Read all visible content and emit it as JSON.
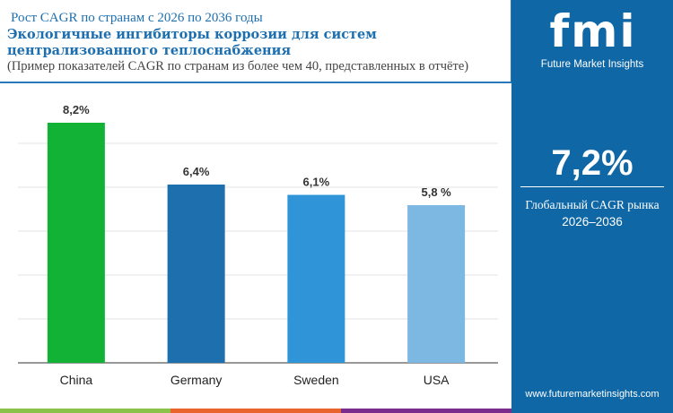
{
  "header": {
    "subtitle": "Рост CAGR по странам с 2026 по 2036 годы",
    "title": "Экологичные ингибиторы коррозии для систем централизованного теплоснабжения",
    "note": "(Пример показателей CAGR по странам из более чем 40, представленных в отчёте)"
  },
  "panel": {
    "logo": "fmi",
    "brand": "Future Market Insights",
    "cagr": "7,2%",
    "cagr_label": "Глобальный CAGR рынка",
    "period": "2026–2036",
    "url": "www.futuremarketinsights.com"
  },
  "colors": {
    "panel": "#0f67a6",
    "stripes": [
      "#8bc34a",
      "#e8642c",
      "#7b2d8e"
    ]
  },
  "chart_data": {
    "type": "bar",
    "categories": [
      "China",
      "Germany",
      "Sweden",
      "USA"
    ],
    "values": [
      8.2,
      6.4,
      6.1,
      5.8
    ],
    "data_labels": [
      "8,2%",
      "6,4%",
      "6,1%",
      "5,8 %"
    ],
    "colors": [
      "#12b236",
      "#1d6fae",
      "#2f95d8",
      "#7db8e2"
    ],
    "grid": true
  }
}
